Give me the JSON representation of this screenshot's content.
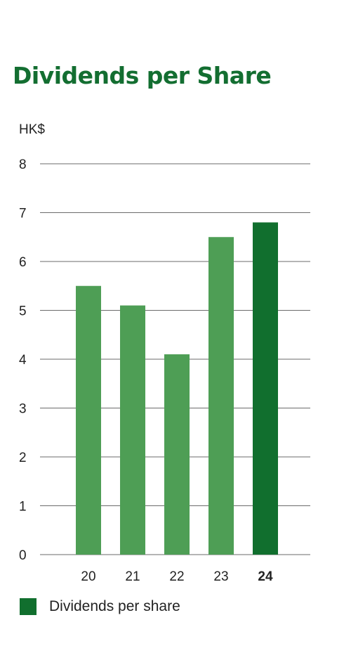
{
  "chart_data": {
    "type": "bar",
    "title": "Dividends per Share",
    "ylabel": "HK$",
    "categories": [
      "20",
      "21",
      "22",
      "23",
      "24"
    ],
    "highlight_category": "24",
    "series": [
      {
        "name": "Dividends per share",
        "values": [
          5.5,
          5.1,
          4.1,
          6.5,
          6.8
        ]
      }
    ],
    "ylim": [
      0,
      8
    ],
    "yticks": [
      "0",
      "1",
      "2",
      "3",
      "4",
      "5",
      "6",
      "7",
      "8"
    ],
    "grid": true,
    "legend_position": "bottom-left",
    "colors": {
      "bar": "#4e9e55",
      "highlight": "#116f2e",
      "title": "#136e31",
      "grid": "#6b6b6b"
    }
  }
}
